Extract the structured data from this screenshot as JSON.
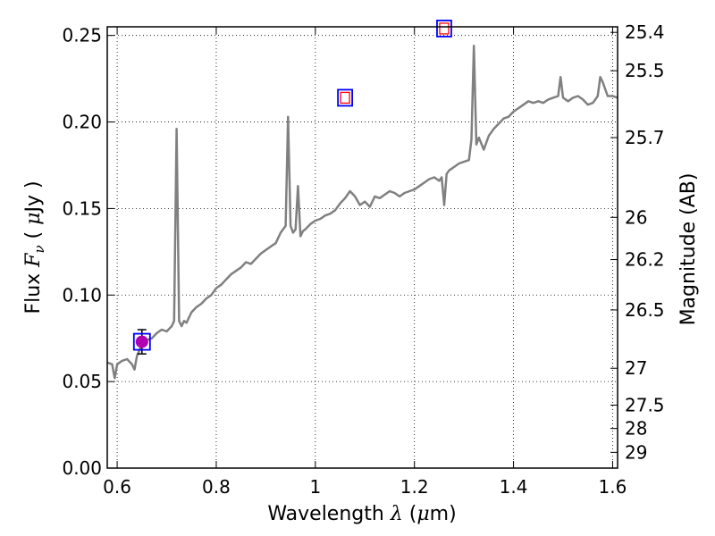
{
  "chart_data": {
    "type": "line",
    "title": "",
    "xlabel": "Wavelength  λ (μm)",
    "ylabel": "Flux  F_ν  ( μJy )",
    "y2label": "Magnitude (AB)",
    "xlim": [
      0.58,
      1.61
    ],
    "ylim": [
      0.0,
      0.255
    ],
    "grid": true,
    "x_ticks": [
      0.6,
      0.8,
      1.0,
      1.2,
      1.4,
      1.6
    ],
    "x_tick_labels": [
      "0.6",
      "0.8",
      "1",
      "1.2",
      "1.4",
      "1.6"
    ],
    "y_ticks": [
      0.0,
      0.05,
      0.1,
      0.15,
      0.2,
      0.25
    ],
    "y_tick_labels": [
      "0.00",
      "0.05",
      "0.10",
      "0.15",
      "0.20",
      "0.25"
    ],
    "mag_ticks": [
      {
        "label": "25.4",
        "flux": 0.2518
      },
      {
        "label": "25.5",
        "flux": 0.2296
      },
      {
        "label": "25.7",
        "flux": 0.191
      },
      {
        "label": "26",
        "flux": 0.1449
      },
      {
        "label": "26.2",
        "flux": 0.1205
      },
      {
        "label": "26.5",
        "flux": 0.0914
      },
      {
        "label": "27",
        "flux": 0.0577
      },
      {
        "label": "27.5",
        "flux": 0.0364
      },
      {
        "label": "28",
        "flux": 0.0229
      },
      {
        "label": "29",
        "flux": 0.0091
      }
    ],
    "series": [
      {
        "color": "#808080",
        "x": [
          0.58,
          0.59,
          0.595,
          0.6,
          0.605,
          0.61,
          0.62,
          0.63,
          0.635,
          0.64,
          0.645,
          0.65,
          0.66,
          0.67,
          0.68,
          0.69,
          0.7,
          0.71,
          0.715,
          0.72,
          0.725,
          0.73,
          0.735,
          0.74,
          0.75,
          0.76,
          0.77,
          0.78,
          0.79,
          0.8,
          0.81,
          0.82,
          0.83,
          0.84,
          0.85,
          0.86,
          0.87,
          0.88,
          0.89,
          0.9,
          0.91,
          0.92,
          0.93,
          0.94,
          0.945,
          0.95,
          0.955,
          0.96,
          0.965,
          0.97,
          0.975,
          0.98,
          0.99,
          1.0,
          1.01,
          1.02,
          1.03,
          1.04,
          1.05,
          1.06,
          1.07,
          1.08,
          1.09,
          1.1,
          1.11,
          1.12,
          1.13,
          1.14,
          1.15,
          1.16,
          1.17,
          1.18,
          1.19,
          1.2,
          1.21,
          1.22,
          1.23,
          1.24,
          1.25,
          1.255,
          1.26,
          1.265,
          1.27,
          1.28,
          1.29,
          1.3,
          1.31,
          1.315,
          1.32,
          1.325,
          1.33,
          1.34,
          1.35,
          1.36,
          1.37,
          1.38,
          1.39,
          1.4,
          1.41,
          1.42,
          1.43,
          1.44,
          1.45,
          1.46,
          1.47,
          1.48,
          1.49,
          1.495,
          1.5,
          1.51,
          1.52,
          1.53,
          1.54,
          1.55,
          1.56,
          1.565,
          1.57,
          1.575,
          1.58,
          1.59,
          1.6,
          1.61
        ],
        "values": [
          0.061,
          0.06,
          0.052,
          0.06,
          0.061,
          0.062,
          0.063,
          0.06,
          0.057,
          0.065,
          0.068,
          0.072,
          0.074,
          0.075,
          0.078,
          0.08,
          0.079,
          0.082,
          0.085,
          0.196,
          0.085,
          0.082,
          0.085,
          0.084,
          0.09,
          0.093,
          0.095,
          0.098,
          0.1,
          0.104,
          0.106,
          0.109,
          0.112,
          0.114,
          0.116,
          0.119,
          0.118,
          0.121,
          0.124,
          0.126,
          0.128,
          0.13,
          0.136,
          0.14,
          0.203,
          0.14,
          0.136,
          0.138,
          0.163,
          0.134,
          0.137,
          0.138,
          0.141,
          0.143,
          0.144,
          0.146,
          0.147,
          0.149,
          0.153,
          0.156,
          0.16,
          0.157,
          0.152,
          0.154,
          0.151,
          0.157,
          0.156,
          0.158,
          0.16,
          0.159,
          0.157,
          0.159,
          0.16,
          0.161,
          0.163,
          0.165,
          0.167,
          0.168,
          0.166,
          0.168,
          0.152,
          0.17,
          0.172,
          0.174,
          0.176,
          0.177,
          0.178,
          0.19,
          0.244,
          0.187,
          0.191,
          0.184,
          0.192,
          0.196,
          0.199,
          0.202,
          0.203,
          0.206,
          0.208,
          0.21,
          0.212,
          0.211,
          0.212,
          0.211,
          0.213,
          0.214,
          0.215,
          0.226,
          0.214,
          0.212,
          0.214,
          0.215,
          0.213,
          0.21,
          0.211,
          0.213,
          0.215,
          0.226,
          0.223,
          0.215,
          0.215,
          0.214
        ]
      }
    ],
    "markers": [
      {
        "x": 0.65,
        "y": 0.073,
        "yerr": 0.007,
        "shape": "circle",
        "fill": "#b000b0",
        "box": "#0000ff"
      },
      {
        "x": 1.06,
        "y": 0.214,
        "shape": "open-square",
        "inner": "#ff0000",
        "box": "#0000ff"
      },
      {
        "x": 1.26,
        "y": 0.254,
        "shape": "open-square",
        "inner": "#ff0000",
        "box": "#0000ff"
      }
    ]
  }
}
